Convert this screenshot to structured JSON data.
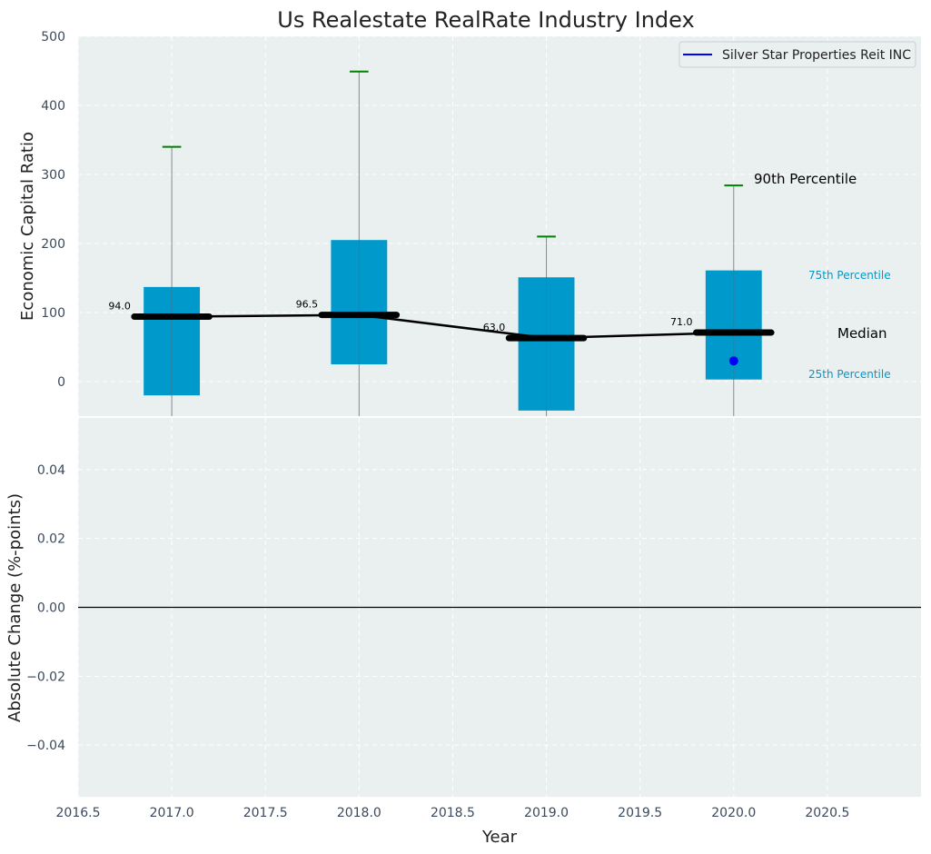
{
  "chart_data": [
    {
      "type": "box",
      "title": "Us Realestate RealRate Industry Index",
      "ylabel": "Economic Capital Ratio",
      "xlim": [
        2016.5,
        2021.0
      ],
      "ylim": [
        -50,
        500
      ],
      "yticks": [
        0,
        100,
        200,
        300,
        400,
        500
      ],
      "grid": true,
      "legend_position": "top-right",
      "legend": [
        {
          "name": "Silver Star Properties Reit INC",
          "color": "#0000ff"
        }
      ],
      "years": [
        2017.0,
        2018.0,
        2019.0,
        2020.0
      ],
      "boxes": [
        {
          "year": 2017.0,
          "q1": -20,
          "median": 94.0,
          "q3": 137,
          "p10": -50,
          "p90": 340
        },
        {
          "year": 2018.0,
          "q1": 25,
          "median": 96.5,
          "q3": 205,
          "p10": -50,
          "p90": 449
        },
        {
          "year": 2019.0,
          "q1": -42,
          "median": 63.0,
          "q3": 151,
          "p10": -50,
          "p90": 210
        },
        {
          "year": 2020.0,
          "q1": 3,
          "median": 71.0,
          "q3": 161,
          "p10": -50,
          "p90": 284
        }
      ],
      "median_labels": [
        "94.0",
        "96.5",
        "63.0",
        "71.0"
      ],
      "company_points": [
        {
          "year": 2020.0,
          "value": 30
        }
      ],
      "annotations": {
        "p90": "90th Percentile",
        "p75": "75th Percentile",
        "median": "Median",
        "p25": "25th Percentile"
      },
      "colors": {
        "box": "#0099cc",
        "whisker_cap": "#008000",
        "median_line": "#000000",
        "company": "#0000ff",
        "background": "#eaeff0"
      }
    },
    {
      "type": "line",
      "xlabel": "Year",
      "ylabel": "Absolute Change (%-points)",
      "xlim": [
        2016.5,
        2021.0
      ],
      "ylim": [
        -0.055,
        0.055
      ],
      "xticks": [
        2016.5,
        2017.0,
        2017.5,
        2018.0,
        2018.5,
        2019.0,
        2019.5,
        2020.0,
        2020.5
      ],
      "yticks": [
        -0.04,
        -0.02,
        0.0,
        0.02,
        0.04
      ],
      "grid": true,
      "reference_line": 0.0
    }
  ],
  "tick_labels": {
    "top_y": [
      "0",
      "100",
      "200",
      "300",
      "400",
      "500"
    ],
    "bottom_y": [
      "−0.04",
      "−0.02",
      "0.00",
      "0.02",
      "0.04"
    ],
    "x": [
      "2016.5",
      "2017.0",
      "2017.5",
      "2018.0",
      "2018.5",
      "2019.0",
      "2019.5",
      "2020.0",
      "2020.5"
    ]
  }
}
